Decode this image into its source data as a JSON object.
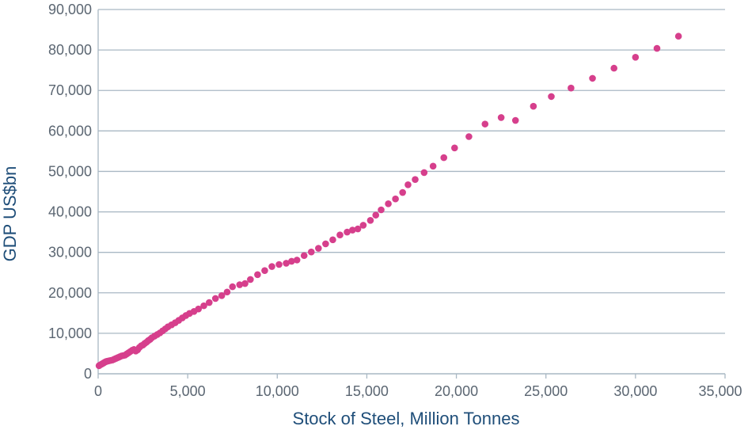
{
  "chart_data": {
    "type": "scatter",
    "title": "",
    "xlabel": "Stock of Steel, Million Tonnes",
    "ylabel": "GDP US$bn",
    "xlim": [
      0,
      35000
    ],
    "ylim": [
      0,
      90000
    ],
    "x_ticks": [
      "0",
      "5,000",
      "10,000",
      "15,000",
      "20,000",
      "25,000",
      "30,000",
      "35,000"
    ],
    "y_ticks": [
      "0",
      "10,000",
      "20,000",
      "30,000",
      "40,000",
      "50,000",
      "60,000",
      "70,000",
      "80,000",
      "90,000"
    ],
    "grid": "horizontal",
    "legend": "none",
    "marker_color": "#d63f8c",
    "grid_color": "#a9b8c4",
    "points": [
      [
        50,
        2000
      ],
      [
        120,
        2200
      ],
      [
        200,
        2400
      ],
      [
        280,
        2600
      ],
      [
        350,
        2800
      ],
      [
        430,
        3000
      ],
      [
        500,
        3100
      ],
      [
        600,
        3200
      ],
      [
        700,
        3300
      ],
      [
        800,
        3400
      ],
      [
        900,
        3600
      ],
      [
        1000,
        3800
      ],
      [
        1100,
        4000
      ],
      [
        1200,
        4200
      ],
      [
        1300,
        4400
      ],
      [
        1400,
        4500
      ],
      [
        1500,
        4600
      ],
      [
        1600,
        4900
      ],
      [
        1700,
        5200
      ],
      [
        1800,
        5500
      ],
      [
        1900,
        5800
      ],
      [
        2000,
        6000
      ],
      [
        2100,
        5600
      ],
      [
        2200,
        5900
      ],
      [
        2300,
        6500
      ],
      [
        2400,
        6900
      ],
      [
        2500,
        7100
      ],
      [
        2600,
        7500
      ],
      [
        2700,
        7800
      ],
      [
        2800,
        8200
      ],
      [
        2900,
        8500
      ],
      [
        3000,
        8900
      ],
      [
        3150,
        9300
      ],
      [
        3300,
        9700
      ],
      [
        3450,
        10100
      ],
      [
        3600,
        10600
      ],
      [
        3750,
        11100
      ],
      [
        3900,
        11600
      ],
      [
        4100,
        12100
      ],
      [
        4300,
        12600
      ],
      [
        4500,
        13200
      ],
      [
        4700,
        13800
      ],
      [
        4900,
        14400
      ],
      [
        5100,
        14900
      ],
      [
        5350,
        15400
      ],
      [
        5600,
        16000
      ],
      [
        5900,
        16800
      ],
      [
        6200,
        17600
      ],
      [
        6550,
        18600
      ],
      [
        6900,
        19300
      ],
      [
        7200,
        20200
      ],
      [
        7500,
        21500
      ],
      [
        7900,
        22000
      ],
      [
        8200,
        22300
      ],
      [
        8500,
        23300
      ],
      [
        8900,
        24500
      ],
      [
        9300,
        25500
      ],
      [
        9700,
        26500
      ],
      [
        10100,
        27000
      ],
      [
        10500,
        27300
      ],
      [
        10800,
        27800
      ],
      [
        11100,
        28100
      ],
      [
        11500,
        29200
      ],
      [
        11900,
        30100
      ],
      [
        12300,
        31000
      ],
      [
        12700,
        32100
      ],
      [
        13100,
        33100
      ],
      [
        13500,
        34300
      ],
      [
        13900,
        35000
      ],
      [
        14200,
        35500
      ],
      [
        14500,
        35800
      ],
      [
        14800,
        36700
      ],
      [
        15200,
        37900
      ],
      [
        15500,
        39200
      ],
      [
        15800,
        40500
      ],
      [
        16200,
        42000
      ],
      [
        16600,
        43200
      ],
      [
        17000,
        44800
      ],
      [
        17300,
        46700
      ],
      [
        17700,
        48000
      ],
      [
        18200,
        49700
      ],
      [
        18700,
        51300
      ],
      [
        19300,
        53400
      ],
      [
        19900,
        55800
      ],
      [
        20700,
        58600
      ],
      [
        21600,
        61700
      ],
      [
        22500,
        63300
      ],
      [
        23300,
        62600
      ],
      [
        24300,
        66100
      ],
      [
        25300,
        68500
      ],
      [
        26400,
        70600
      ],
      [
        27600,
        73000
      ],
      [
        28800,
        75500
      ],
      [
        30000,
        78200
      ],
      [
        31200,
        80400
      ],
      [
        32400,
        83400
      ]
    ]
  }
}
